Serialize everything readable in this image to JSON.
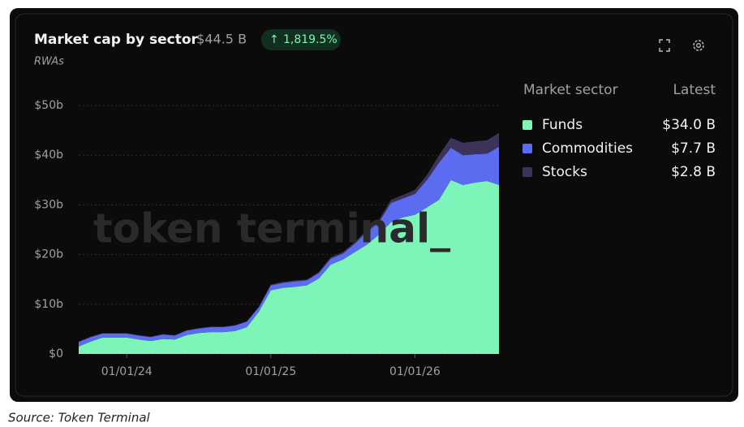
{
  "header": {
    "total": "· $44.5 B",
    "change": "1,819.5%"
  },
  "source": "Source: Token Terminal",
  "watermark": "token terminal_",
  "legend_header": {
    "name": "Market sector",
    "latest": "Latest"
  },
  "chart_data": {
    "type": "stacked-area",
    "title": "Market cap by sector",
    "subtitle": "RWAs",
    "x": [
      "09/01/23",
      "10/01/23",
      "11/01/23",
      "12/01/23",
      "01/01/24",
      "02/01/24",
      "03/01/24",
      "04/01/24",
      "05/01/24",
      "06/01/24",
      "07/01/24",
      "08/01/24",
      "09/01/24",
      "10/01/24",
      "11/01/24",
      "12/01/24",
      "01/01/25",
      "02/01/25",
      "03/01/25",
      "04/01/25",
      "05/01/25",
      "06/01/25",
      "07/01/25",
      "08/01/25",
      "09/01/25",
      "10/01/25",
      "11/01/25",
      "12/01/25",
      "01/01/26",
      "02/01/26",
      "03/01/26",
      "04/01/26",
      "05/01/26",
      "06/01/26",
      "07/01/26",
      "08/01/26"
    ],
    "xticks": [
      "01/01/24",
      "01/01/25",
      "01/01/26"
    ],
    "ylim": [
      0,
      50
    ],
    "yticks": [
      {
        "value": 0,
        "label": "$0"
      },
      {
        "value": 10,
        "label": "$10b"
      },
      {
        "value": 20,
        "label": "$20b"
      },
      {
        "value": 30,
        "label": "$30b"
      },
      {
        "value": 40,
        "label": "$40b"
      },
      {
        "value": 50,
        "label": "$50b"
      }
    ],
    "grid": true,
    "series": [
      {
        "name": "Funds",
        "color": "#7ef5b8",
        "latest": "$34.0 B",
        "values": [
          1.5,
          2.5,
          3.3,
          3.3,
          3.3,
          2.9,
          2.6,
          3.0,
          2.9,
          3.8,
          4.2,
          4.4,
          4.4,
          4.6,
          5.4,
          8.5,
          12.8,
          13.3,
          13.5,
          13.8,
          15.2,
          18.0,
          19.0,
          20.5,
          22.0,
          24.0,
          26.5,
          27.5,
          28.0,
          29.5,
          31.0,
          35.0,
          34.0,
          34.5,
          34.8,
          34.0
        ]
      },
      {
        "name": "Commodities",
        "color": "#5b6cf0",
        "latest": "$7.7 B",
        "values": [
          0.9,
          0.9,
          0.8,
          0.8,
          0.8,
          0.8,
          0.8,
          0.9,
          0.8,
          0.9,
          0.9,
          1.0,
          1.0,
          1.1,
          1.1,
          0.9,
          1.0,
          1.0,
          1.1,
          1.0,
          1.1,
          1.2,
          1.2,
          1.7,
          2.6,
          2.5,
          3.9,
          3.8,
          4.2,
          5.5,
          7.5,
          6.5,
          6.0,
          5.7,
          5.5,
          7.7
        ]
      },
      {
        "name": "Stocks",
        "color": "#3b3458",
        "latest": "$2.8 B",
        "values": [
          0.1,
          0.1,
          0.1,
          0.1,
          0.1,
          0.1,
          0.1,
          0.1,
          0.1,
          0.1,
          0.1,
          0.1,
          0.1,
          0.1,
          0.1,
          0.1,
          0.2,
          0.2,
          0.2,
          0.2,
          0.2,
          0.3,
          0.3,
          0.3,
          0.4,
          0.5,
          0.6,
          0.7,
          0.8,
          1.0,
          1.5,
          2.0,
          2.5,
          2.6,
          2.7,
          2.8
        ]
      }
    ]
  }
}
